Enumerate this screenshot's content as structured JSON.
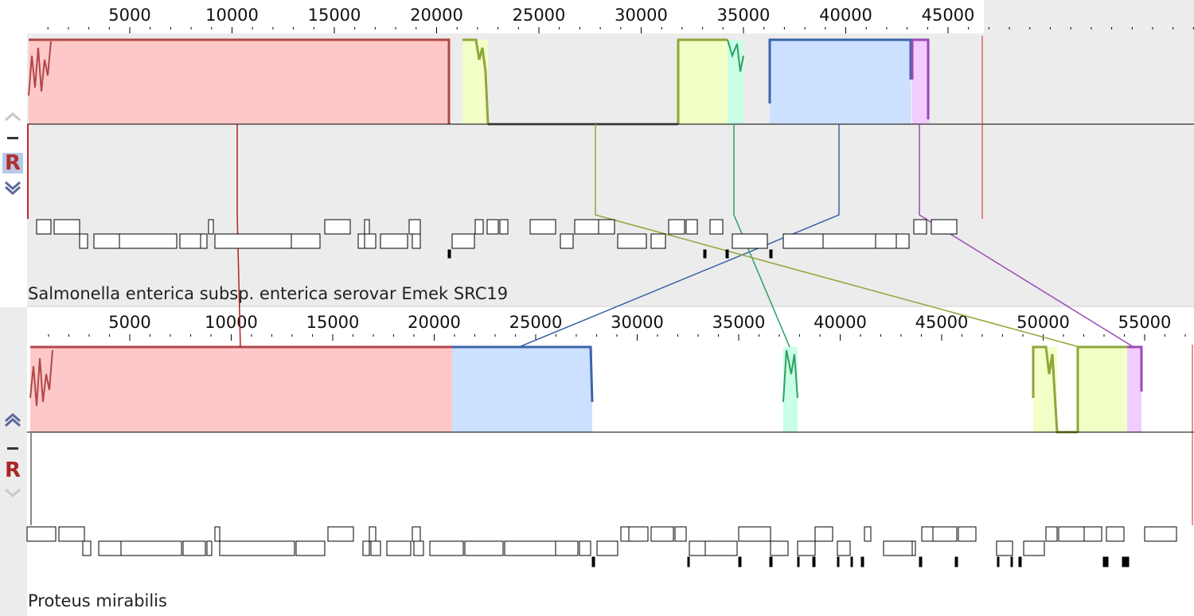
{
  "colors": {
    "lcb_red": "#c84b4b",
    "lcb_red_fill": "#ffc8c8",
    "lcb_lime": "#8fa63a",
    "lcb_lime_fill": "#f2ffc6",
    "lcb_blue": "#3c64a8",
    "lcb_blue_fill": "#cce0ff",
    "lcb_green": "#2ea060",
    "lcb_green_fill": "#c8ffe6",
    "lcb_purple": "#9a4ab8",
    "lcb_purple_fill": "#f2cbff",
    "lcb_gray": "#6a6a6a",
    "panel_background": "#ececec",
    "selected_background": "#ffffff",
    "reference_marker": "#aa2222"
  },
  "controls": {
    "up_icon": "chevron-up-icon",
    "down_icon": "chevron-down-icon",
    "collapse_icon": "minus-icon",
    "reference_label": "R"
  },
  "genomes": [
    {
      "name": "Salmonella enterica subsp. enterica serovar Emek SRC19",
      "ruler_ticks": [
        "5000",
        "10000",
        "15000",
        "20000",
        "25000",
        "30000",
        "35000",
        "40000",
        "45000"
      ],
      "is_reference": true
    },
    {
      "name": "Proteus mirabilis",
      "ruler_ticks": [
        "5000",
        "10000",
        "15000",
        "20000",
        "25000",
        "30000",
        "35000",
        "40000",
        "45000",
        "50000",
        "55000"
      ],
      "is_reference": false
    }
  ]
}
